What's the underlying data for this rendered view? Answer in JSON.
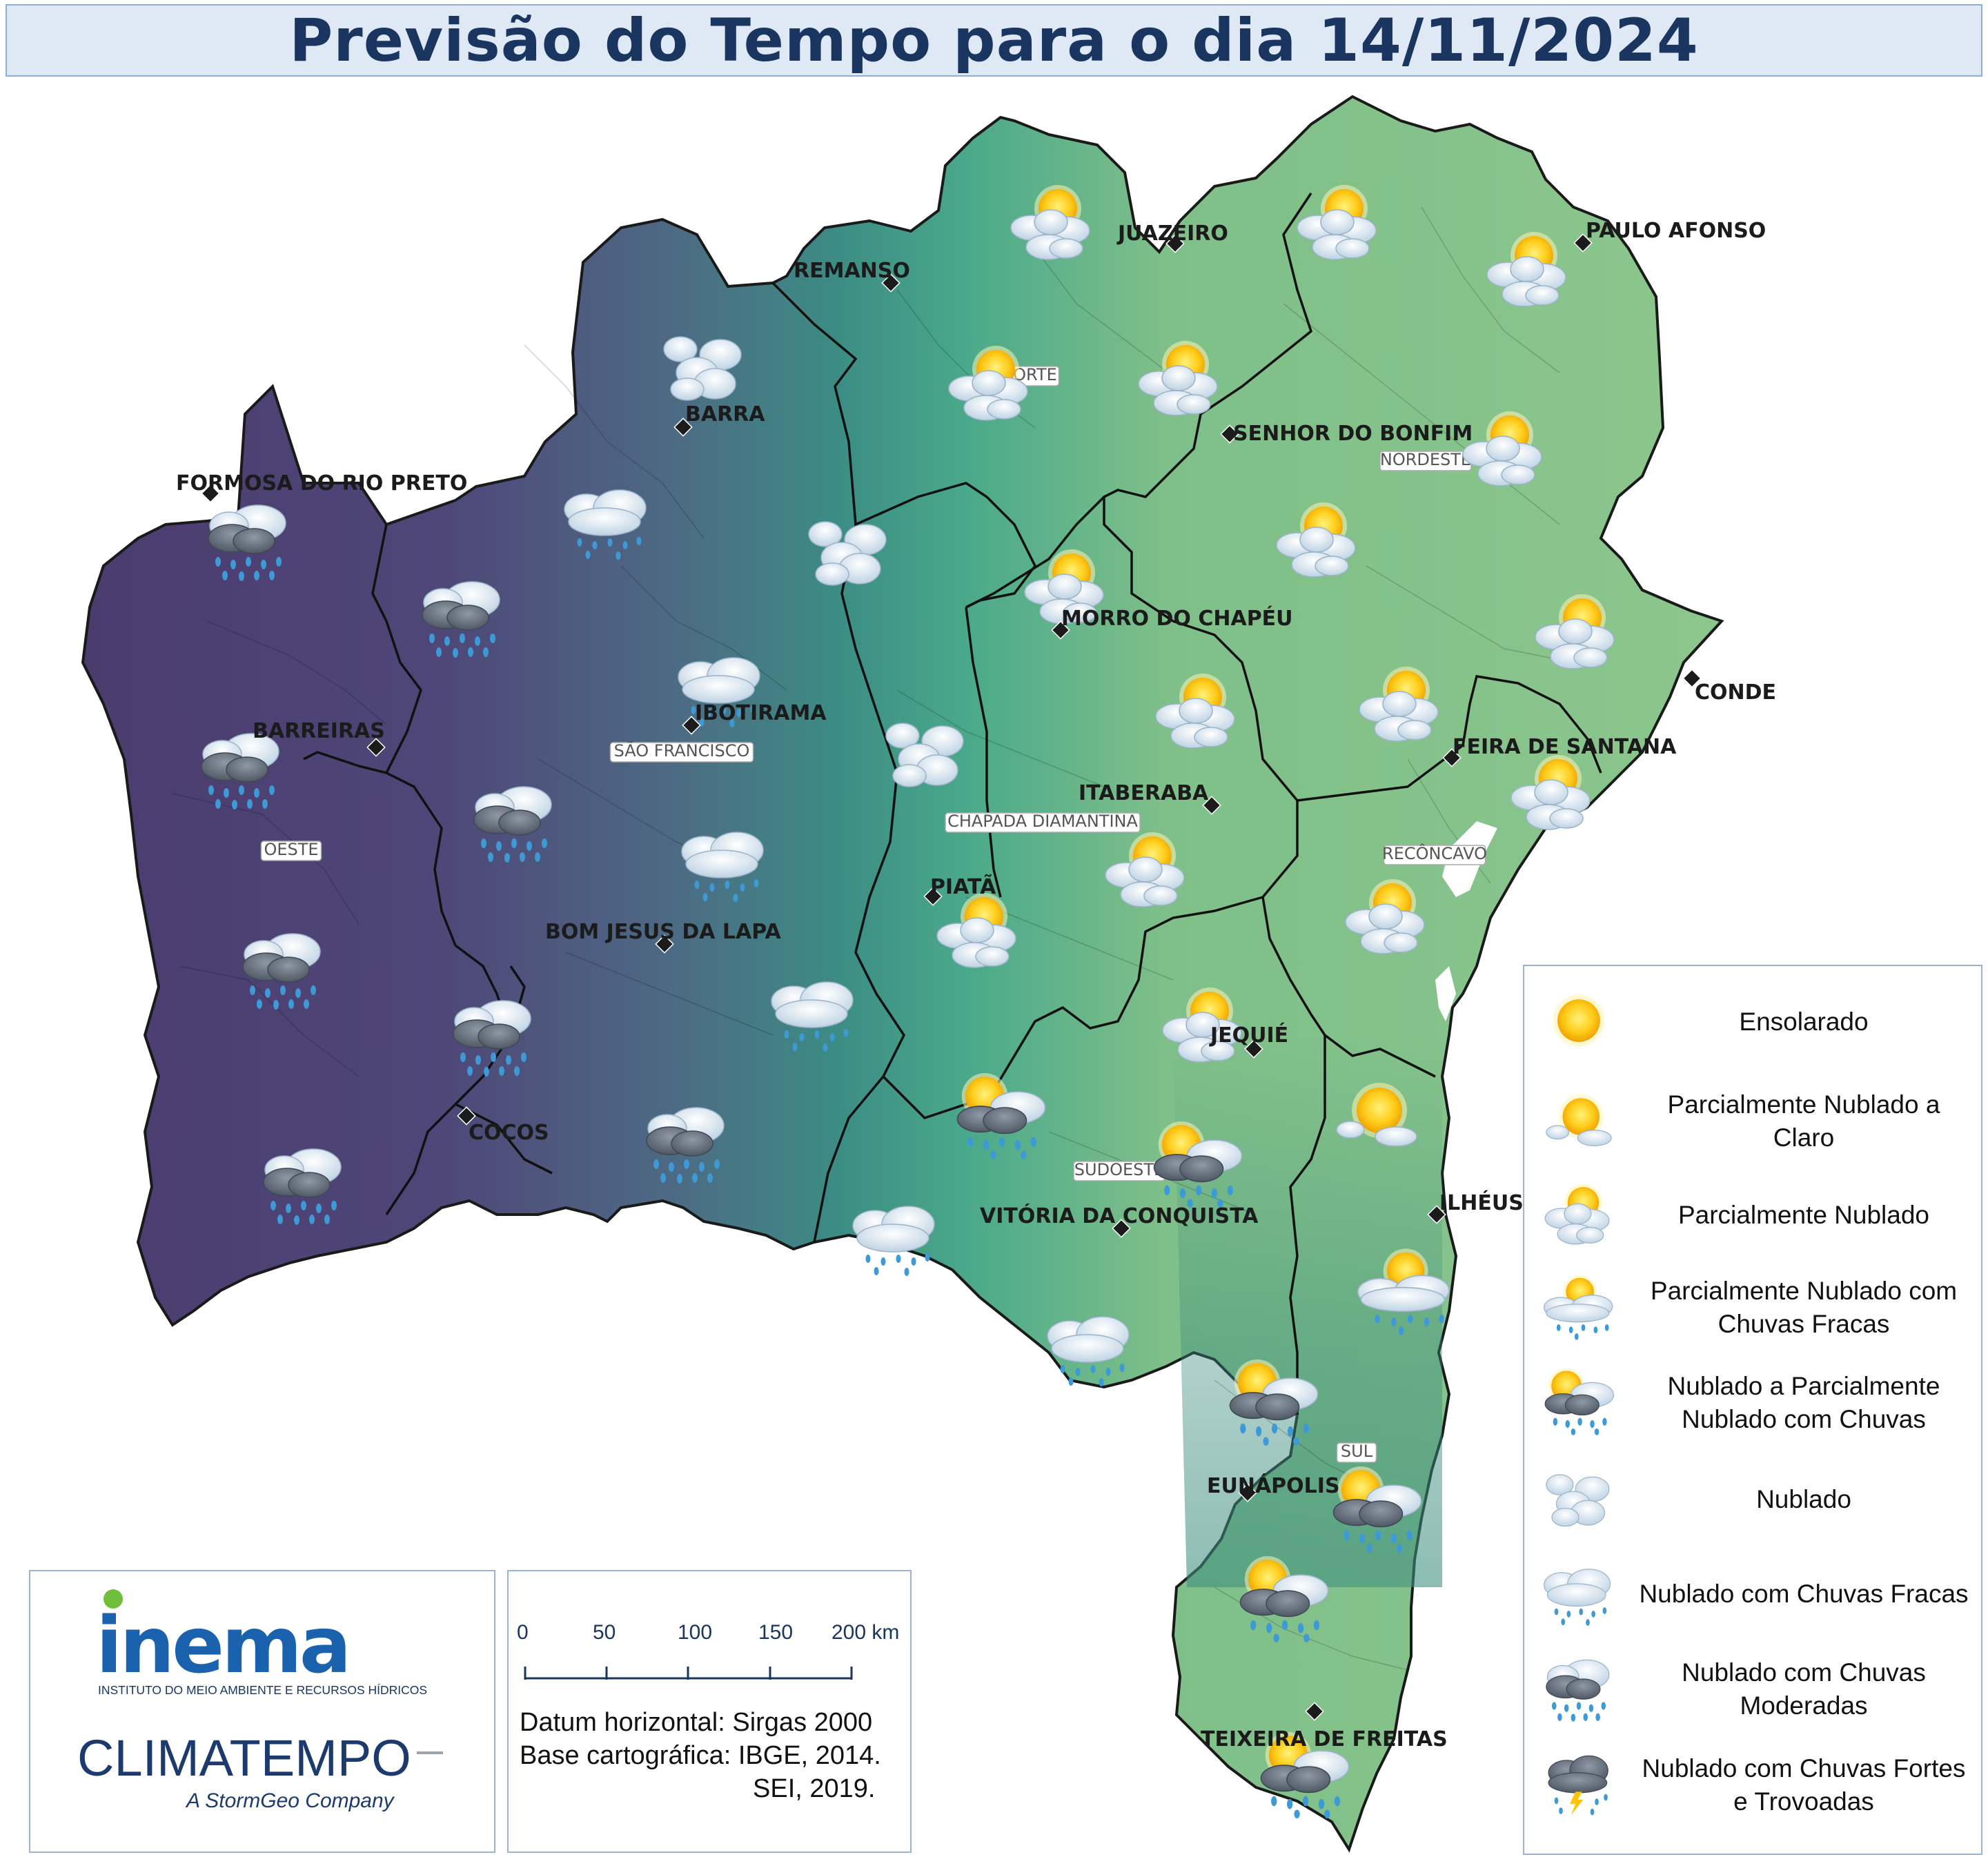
{
  "title": "Previsão do Tempo para o dia 14/11/2024",
  "cities": [
    {
      "name": "JUAZEIRO"
    },
    {
      "name": "PAULO AFONSO"
    },
    {
      "name": "REMANSO"
    },
    {
      "name": "BARRA"
    },
    {
      "name": "SENHOR DO BONFIM"
    },
    {
      "name": "FORMOSA DO RIO PRETO"
    },
    {
      "name": "MORRO DO CHAPÉU"
    },
    {
      "name": "CONDE"
    },
    {
      "name": "IBOTIRAMA"
    },
    {
      "name": "FEIRA DE SANTANA"
    },
    {
      "name": "BARREIRAS"
    },
    {
      "name": "ITABERABA"
    },
    {
      "name": "PIATÃ"
    },
    {
      "name": "BOM JESUS DA LAPA"
    },
    {
      "name": "JEQUIÉ"
    },
    {
      "name": "COCOS"
    },
    {
      "name": "ILHÉUS"
    },
    {
      "name": "VITÓRIA DA CONQUISTA"
    },
    {
      "name": "EUNÁPOLIS"
    },
    {
      "name": "TEIXEIRA DE FREITAS"
    }
  ],
  "regions": [
    "NORTE",
    "NORDESTE",
    "SÃO FRANCISCO",
    "OESTE",
    "CHAPADA DIAMANTINA",
    "RECÔNCAVO",
    "SUDOESTE",
    "SUL"
  ],
  "legend": [
    {
      "label": "Ensolarado",
      "icon": "sun"
    },
    {
      "label": "Parcialmente Nublado a Claro",
      "icon": "sun-small-cloud"
    },
    {
      "label": "Parcialmente Nublado",
      "icon": "sun-clouds"
    },
    {
      "label": "Parcialmente Nublado com Chuvas Fracas",
      "icon": "sun-cloud-light-rain"
    },
    {
      "label": "Nublado a Parcialmente Nublado com Chuvas",
      "icon": "sun-dark-cloud-rain"
    },
    {
      "label": "Nublado",
      "icon": "clouds"
    },
    {
      "label": "Nublado com Chuvas Fracas",
      "icon": "cloud-light-rain"
    },
    {
      "label": "Nublado com Chuvas Moderadas",
      "icon": "dark-cloud-rain"
    },
    {
      "label": "Nublado com Chuvas Fortes e Trovoadas",
      "icon": "storm-cloud-lightning"
    }
  ],
  "scale": {
    "ticks": [
      "0",
      "50",
      "100",
      "150",
      "200 km"
    ]
  },
  "map_info": {
    "datum": "Datum horizontal: Sirgas 2000",
    "base": "Base cartográfica: IBGE, 2014.",
    "base2": "SEI, 2019."
  },
  "logos": {
    "inema": "inema",
    "inema_sub": "INSTITUTO DO MEIO AMBIENTE E RECURSOS HÍDRICOS",
    "climatempo": "CLIMATEMPO",
    "climatempo_sub": "A StormGeo Company"
  },
  "colors": {
    "oeste": "#4a3a6b",
    "central": "#3d6a80",
    "green": "#2f9d80",
    "east": "#86c28a"
  }
}
